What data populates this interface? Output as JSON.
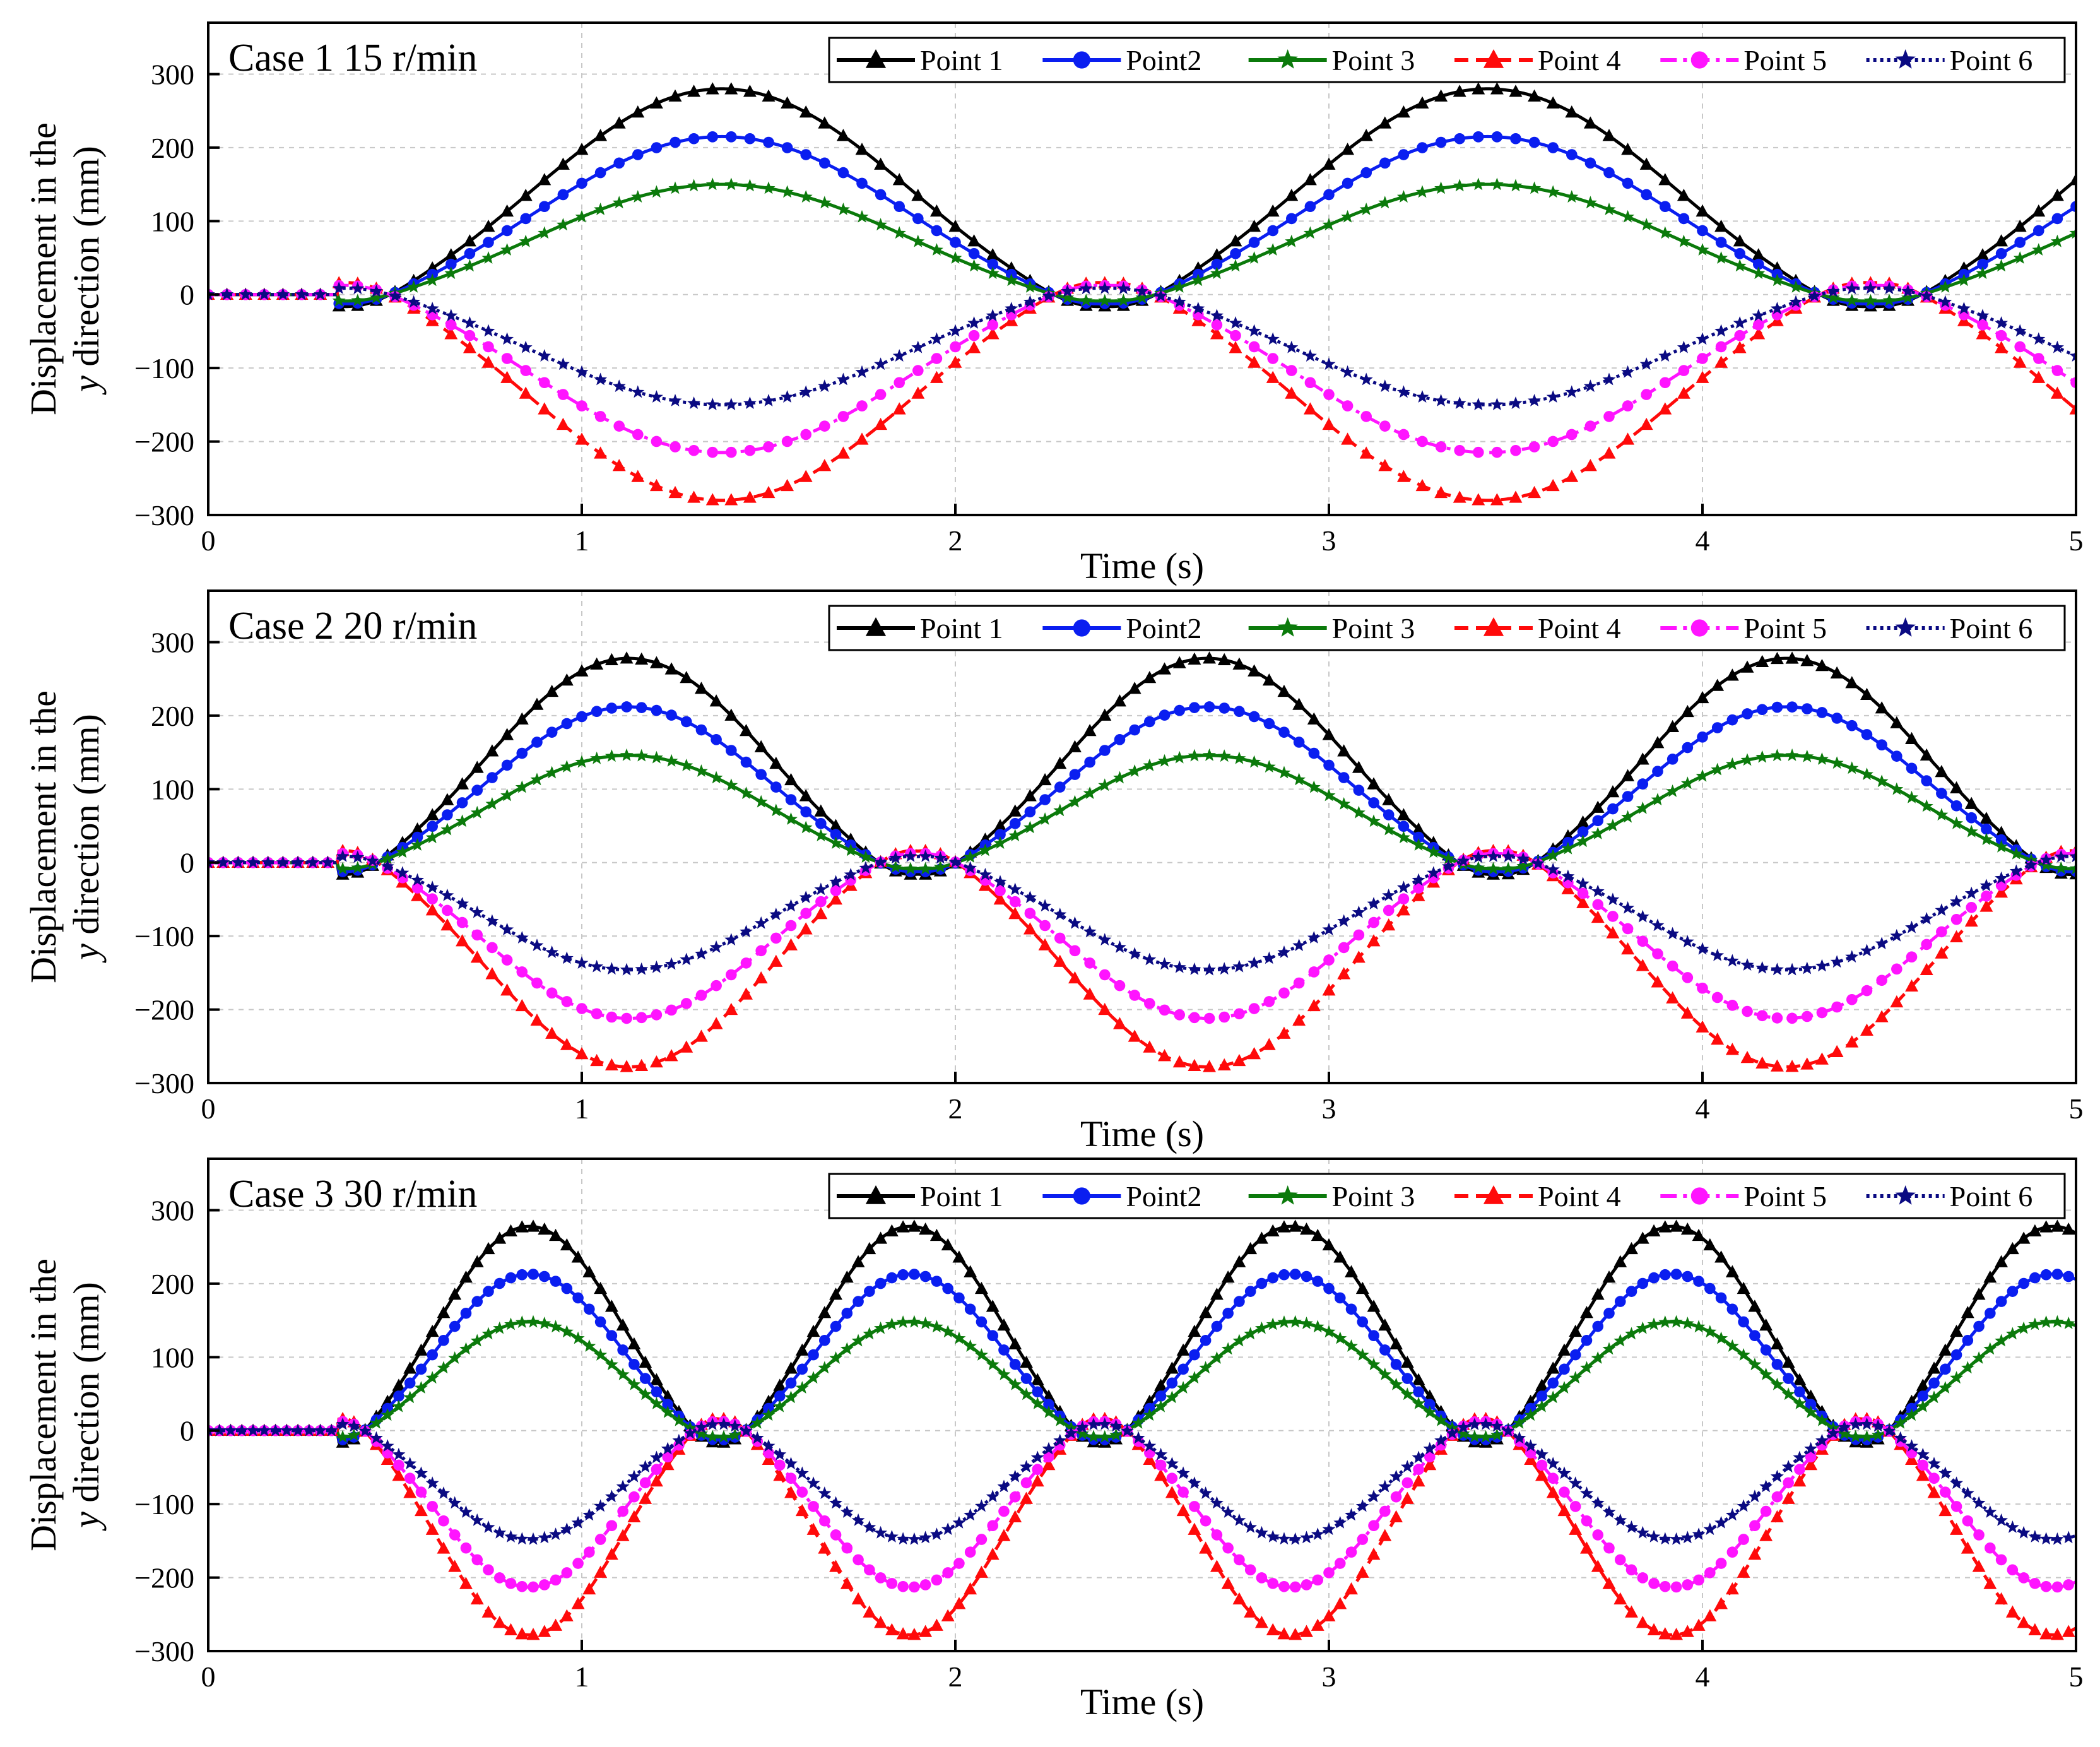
{
  "figure": {
    "ylabel_line1": "Displacement in the",
    "ylabel_line2_italic": "y",
    "ylabel_line2_rest": " direction (mm)",
    "xlabel": "Time (s)"
  },
  "legend_labels": [
    "Point 1",
    "Point2",
    "Point 3",
    "Point 4",
    "Point 5",
    "Point 6"
  ],
  "chart_data": [
    {
      "type": "line",
      "title": "Case 1   15 r/min",
      "xlabel": "Time (s)",
      "ylabel": "Displacement in the y direction (mm)",
      "xlim": [
        0,
        5
      ],
      "ylim": [
        -300,
        370
      ],
      "xticks": [
        0,
        1,
        2,
        3,
        4,
        5
      ],
      "yticks": [
        -300,
        -200,
        -100,
        0,
        100,
        200,
        300
      ],
      "grid": true,
      "legend": "top-right",
      "period_s": 2.05,
      "start_s": 0.35,
      "sample_step_s": 0.05,
      "series": [
        {
          "name": "Point 1",
          "amplitude_mm": 280,
          "color": "#000000",
          "dash": "solid",
          "marker": "triangle"
        },
        {
          "name": "Point2",
          "amplitude_mm": 215,
          "color": "#0a1ef0",
          "dash": "solid",
          "marker": "circle"
        },
        {
          "name": "Point 3",
          "amplitude_mm": 150,
          "color": "#0b7a0b",
          "dash": "solid",
          "marker": "star"
        },
        {
          "name": "Point 4",
          "amplitude_mm": -280,
          "color": "#ff0a0a",
          "dash": "dash",
          "marker": "triangle"
        },
        {
          "name": "Point 5",
          "amplitude_mm": -215,
          "color": "#ff14ff",
          "dash": "dashdot",
          "marker": "circle"
        },
        {
          "name": "Point 6",
          "amplitude_mm": -150,
          "color": "#0a0a82",
          "dash": "dot",
          "marker": "star"
        }
      ]
    },
    {
      "type": "line",
      "title": "Case 2   20 r/min",
      "xlabel": "Time (s)",
      "ylabel": "Displacement in the y direction (mm)",
      "xlim": [
        0,
        5
      ],
      "ylim": [
        -300,
        370
      ],
      "xticks": [
        0,
        1,
        2,
        3,
        4,
        5
      ],
      "yticks": [
        -300,
        -200,
        -100,
        0,
        100,
        200,
        300
      ],
      "grid": true,
      "legend": "top-right",
      "period_s": 1.55,
      "start_s": 0.35,
      "sample_step_s": 0.04,
      "series": [
        {
          "name": "Point 1",
          "amplitude_mm": 278,
          "color": "#000000",
          "dash": "solid",
          "marker": "triangle"
        },
        {
          "name": "Point2",
          "amplitude_mm": 212,
          "color": "#0a1ef0",
          "dash": "solid",
          "marker": "circle"
        },
        {
          "name": "Point 3",
          "amplitude_mm": 146,
          "color": "#0b7a0b",
          "dash": "solid",
          "marker": "star"
        },
        {
          "name": "Point 4",
          "amplitude_mm": -278,
          "color": "#ff0a0a",
          "dash": "dash",
          "marker": "triangle"
        },
        {
          "name": "Point 5",
          "amplitude_mm": -212,
          "color": "#ff14ff",
          "dash": "dashdot",
          "marker": "circle"
        },
        {
          "name": "Point 6",
          "amplitude_mm": -146,
          "color": "#0a0a82",
          "dash": "dot",
          "marker": "star"
        }
      ]
    },
    {
      "type": "line",
      "title": "Case 3   30 r/min",
      "xlabel": "Time (s)",
      "ylabel": "Displacement in the y direction (mm)",
      "xlim": [
        0,
        5
      ],
      "ylim": [
        -300,
        370
      ],
      "xticks": [
        0,
        1,
        2,
        3,
        4,
        5
      ],
      "yticks": [
        -300,
        -200,
        -100,
        0,
        100,
        200,
        300
      ],
      "grid": true,
      "legend": "top-right",
      "period_s": 1.02,
      "start_s": 0.35,
      "sample_step_s": 0.03,
      "series": [
        {
          "name": "Point 1",
          "amplitude_mm": 278,
          "color": "#000000",
          "dash": "solid",
          "marker": "triangle"
        },
        {
          "name": "Point2",
          "amplitude_mm": 213,
          "color": "#0a1ef0",
          "dash": "solid",
          "marker": "circle"
        },
        {
          "name": "Point 3",
          "amplitude_mm": 148,
          "color": "#0b7a0b",
          "dash": "solid",
          "marker": "star"
        },
        {
          "name": "Point 4",
          "amplitude_mm": -278,
          "color": "#ff0a0a",
          "dash": "dash",
          "marker": "triangle"
        },
        {
          "name": "Point 5",
          "amplitude_mm": -213,
          "color": "#ff14ff",
          "dash": "dashdot",
          "marker": "circle"
        },
        {
          "name": "Point 6",
          "amplitude_mm": -148,
          "color": "#0a0a82",
          "dash": "dot",
          "marker": "star"
        }
      ]
    }
  ]
}
